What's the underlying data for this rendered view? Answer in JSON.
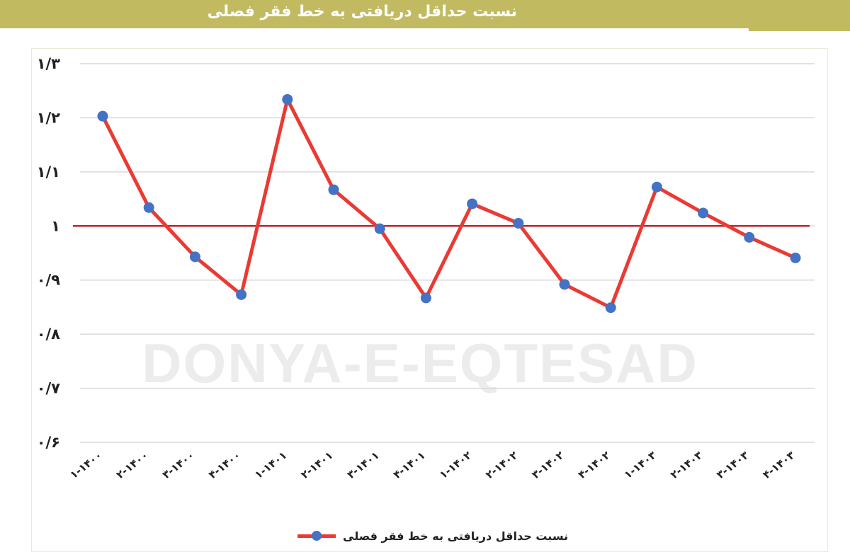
{
  "header": {
    "title": "نسبت حداقل دریافتی به خط فقر فصلی"
  },
  "watermark": {
    "text": "DONYA-E-EQTESAD"
  },
  "chart_data": {
    "type": "line",
    "categories": [
      "۱-۱۴۰۰",
      "۲-۱۴۰۰",
      "۳-۱۴۰۰",
      "۴-۱۴۰۰",
      "۱-۱۴۰۱",
      "۲-۱۴۰۱",
      "۳-۱۴۰۱",
      "۴-۱۴۰۱",
      "۱-۱۴۰۲",
      "۲-۱۴۰۲",
      "۳-۱۴۰۲",
      "۴-۱۴۰۲",
      "۱-۱۴۰۳",
      "۲-۱۴۰۳",
      "۳-۱۴۰۳",
      "۴-۱۴۰۳"
    ],
    "series": [
      {
        "name": "نسبت حداقل دریافتی به خط فقر فصلی",
        "color": "#ea3a33",
        "marker_color": "#4472c4",
        "values": [
          1.203,
          1.034,
          0.943,
          0.873,
          1.234,
          1.067,
          0.995,
          0.867,
          1.041,
          1.005,
          0.892,
          0.849,
          1.072,
          1.024,
          0.979,
          0.941
        ]
      }
    ],
    "reference_line": {
      "value": 1.0,
      "color": "#c0262b"
    },
    "ylim": [
      0.6,
      1.3
    ],
    "yticks": [
      1.3,
      1.2,
      1.1,
      1.0,
      0.9,
      0.8,
      0.7,
      0.6
    ],
    "ytick_labels": [
      "۱/۳",
      "۱/۲",
      "۱/۱",
      "۱",
      "۰/۹",
      "۰/۸",
      "۰/۷",
      "۰/۶"
    ],
    "grid": true,
    "legend_position": "bottom"
  }
}
